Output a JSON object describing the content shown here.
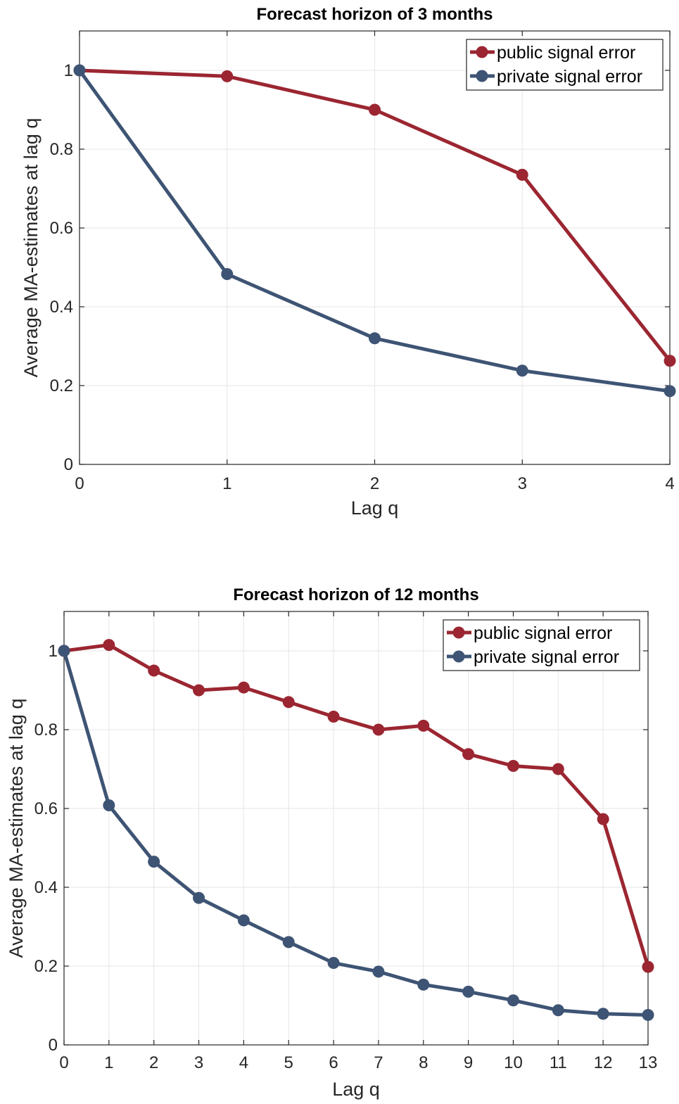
{
  "chart_data": [
    {
      "type": "line",
      "title": "Forecast horizon of 3 months",
      "xlabel": "Lag q",
      "ylabel": "Average MA-estimates at lag q",
      "x": [
        0,
        1,
        2,
        3,
        4
      ],
      "xlim": [
        0,
        4
      ],
      "ylim": [
        0,
        1.1
      ],
      "xticks": [
        0,
        1,
        2,
        3,
        4
      ],
      "yticks": [
        0,
        0.2,
        0.4,
        0.6,
        0.8,
        1
      ],
      "ytick_labels": [
        "0",
        "0.2",
        "0.4",
        "0.6",
        "0.8",
        "1"
      ],
      "grid": true,
      "legend_position": "top-right",
      "series": [
        {
          "name": "public signal error",
          "color": "#9b2631",
          "values": [
            1.0,
            0.985,
            0.9,
            0.735,
            0.263
          ]
        },
        {
          "name": "private signal error",
          "color": "#3e5474",
          "values": [
            1.0,
            0.483,
            0.32,
            0.238,
            0.186
          ]
        }
      ]
    },
    {
      "type": "line",
      "title": "Forecast horizon of 12 months",
      "xlabel": "Lag q",
      "ylabel": "Average MA-estimates at lag q",
      "x": [
        0,
        1,
        2,
        3,
        4,
        5,
        6,
        7,
        8,
        9,
        10,
        11,
        12,
        13
      ],
      "xlim": [
        0,
        13
      ],
      "ylim": [
        0,
        1.1
      ],
      "xticks": [
        0,
        1,
        2,
        3,
        4,
        5,
        6,
        7,
        8,
        9,
        10,
        11,
        12,
        13
      ],
      "yticks": [
        0,
        0.2,
        0.4,
        0.6,
        0.8,
        1
      ],
      "ytick_labels": [
        "0",
        "0.2",
        "0.4",
        "0.6",
        "0.8",
        "1"
      ],
      "grid": true,
      "legend_position": "top-right",
      "series": [
        {
          "name": "public signal error",
          "color": "#9b2631",
          "values": [
            1.0,
            1.015,
            0.95,
            0.9,
            0.907,
            0.87,
            0.833,
            0.8,
            0.81,
            0.738,
            0.708,
            0.7,
            0.573,
            0.198
          ]
        },
        {
          "name": "private signal error",
          "color": "#3e5474",
          "values": [
            1.0,
            0.608,
            0.465,
            0.373,
            0.316,
            0.261,
            0.208,
            0.186,
            0.153,
            0.135,
            0.113,
            0.088,
            0.079,
            0.076
          ]
        }
      ]
    }
  ]
}
